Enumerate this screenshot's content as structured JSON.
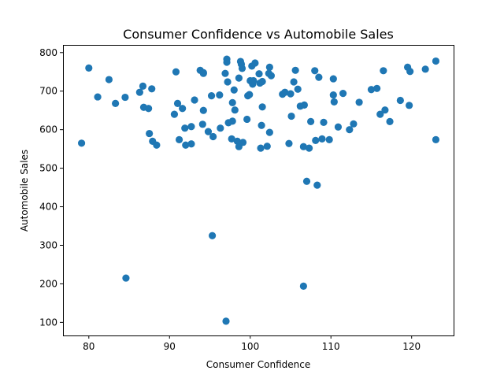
{
  "chart_data": {
    "type": "scatter",
    "title": "Consumer Confidence vs Automobile Sales",
    "xlabel": "Consumer Confidence",
    "ylabel": "Automobile Sales",
    "xlim": [
      76.8,
      125.2
    ],
    "ylim": [
      66,
      820
    ],
    "xticks": [
      80,
      90,
      100,
      110,
      120
    ],
    "yticks": [
      100,
      200,
      300,
      400,
      500,
      600,
      700,
      800
    ],
    "grid": false,
    "color": "#1f77b4",
    "points": [
      [
        79.1,
        565
      ],
      [
        80.0,
        760
      ],
      [
        81.1,
        685
      ],
      [
        82.5,
        730
      ],
      [
        83.3,
        668
      ],
      [
        84.5,
        684
      ],
      [
        84.6,
        215
      ],
      [
        86.3,
        697
      ],
      [
        86.7,
        713
      ],
      [
        86.8,
        658
      ],
      [
        87.4,
        655
      ],
      [
        87.5,
        590
      ],
      [
        87.8,
        706
      ],
      [
        87.9,
        570
      ],
      [
        88.4,
        560
      ],
      [
        90.6,
        640
      ],
      [
        90.8,
        750
      ],
      [
        91.0,
        668
      ],
      [
        91.2,
        574
      ],
      [
        91.6,
        655
      ],
      [
        91.9,
        604
      ],
      [
        92.0,
        560
      ],
      [
        92.7,
        608
      ],
      [
        92.7,
        563
      ],
      [
        93.1,
        677
      ],
      [
        93.8,
        754
      ],
      [
        94.1,
        614
      ],
      [
        94.2,
        748
      ],
      [
        94.2,
        746
      ],
      [
        94.2,
        650
      ],
      [
        94.8,
        595
      ],
      [
        95.2,
        688
      ],
      [
        95.3,
        325
      ],
      [
        95.4,
        582
      ],
      [
        96.2,
        690
      ],
      [
        96.3,
        604
      ],
      [
        96.9,
        746
      ],
      [
        97.0,
        103
      ],
      [
        97.1,
        783
      ],
      [
        97.1,
        775
      ],
      [
        97.2,
        724
      ],
      [
        97.3,
        618
      ],
      [
        97.7,
        576
      ],
      [
        97.8,
        670
      ],
      [
        97.8,
        622
      ],
      [
        98.0,
        703
      ],
      [
        98.1,
        651
      ],
      [
        98.4,
        570
      ],
      [
        98.6,
        734
      ],
      [
        98.6,
        556
      ],
      [
        98.8,
        777
      ],
      [
        98.9,
        770
      ],
      [
        99.0,
        759
      ],
      [
        99.1,
        567
      ],
      [
        99.6,
        627
      ],
      [
        99.7,
        688
      ],
      [
        99.9,
        691
      ],
      [
        100.0,
        727
      ],
      [
        100.2,
        765
      ],
      [
        100.3,
        718
      ],
      [
        100.4,
        727
      ],
      [
        100.6,
        773
      ],
      [
        101.1,
        745
      ],
      [
        101.2,
        721
      ],
      [
        101.3,
        552
      ],
      [
        101.4,
        611
      ],
      [
        101.5,
        725
      ],
      [
        101.5,
        659
      ],
      [
        102.1,
        557
      ],
      [
        102.3,
        746
      ],
      [
        102.4,
        762
      ],
      [
        102.4,
        593
      ],
      [
        102.6,
        740
      ],
      [
        104.0,
        692
      ],
      [
        104.3,
        697
      ],
      [
        104.8,
        564
      ],
      [
        105.0,
        693
      ],
      [
        105.1,
        635
      ],
      [
        105.4,
        724
      ],
      [
        105.6,
        754
      ],
      [
        105.9,
        705
      ],
      [
        106.2,
        661
      ],
      [
        106.6,
        556
      ],
      [
        106.6,
        194
      ],
      [
        106.7,
        664
      ],
      [
        107.0,
        466
      ],
      [
        107.3,
        552
      ],
      [
        107.5,
        621
      ],
      [
        108.0,
        753
      ],
      [
        108.1,
        572
      ],
      [
        108.3,
        456
      ],
      [
        108.5,
        736
      ],
      [
        108.9,
        576
      ],
      [
        109.1,
        619
      ],
      [
        109.8,
        574
      ],
      [
        110.3,
        690
      ],
      [
        110.3,
        732
      ],
      [
        110.4,
        672
      ],
      [
        110.9,
        607
      ],
      [
        111.5,
        694
      ],
      [
        112.3,
        600
      ],
      [
        112.8,
        615
      ],
      [
        113.5,
        671
      ],
      [
        115.0,
        704
      ],
      [
        115.7,
        707
      ],
      [
        116.1,
        640
      ],
      [
        116.5,
        753
      ],
      [
        116.7,
        651
      ],
      [
        117.3,
        621
      ],
      [
        118.6,
        676
      ],
      [
        119.5,
        762
      ],
      [
        119.7,
        663
      ],
      [
        119.8,
        751
      ],
      [
        121.7,
        757
      ],
      [
        123.0,
        778
      ],
      [
        123.0,
        574
      ]
    ]
  }
}
